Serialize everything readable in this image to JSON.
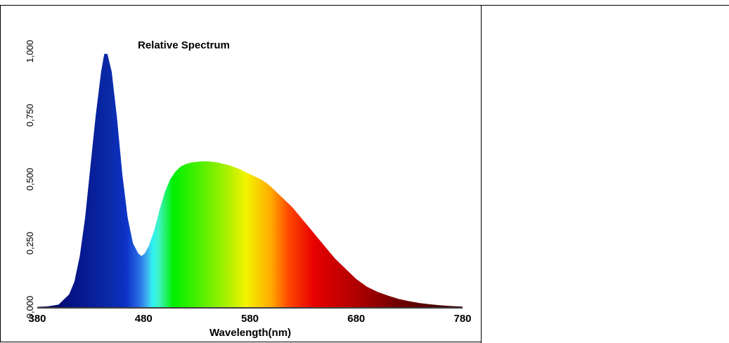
{
  "chart_data": {
    "type": "area",
    "title": "Relative Spectrum",
    "xlabel": "Wavelength(nm)",
    "ylabel": "",
    "xlim": [
      380,
      780
    ],
    "ylim": [
      0,
      1.0
    ],
    "x_ticks": [
      "380",
      "480",
      "580",
      "680",
      "780"
    ],
    "y_ticks": [
      "0,000",
      "0,250",
      "0,500",
      "0,750",
      "1,000"
    ],
    "grid": false,
    "legend": "none",
    "fill": "visible-spectrum-gradient",
    "series": [
      {
        "x": [
          380,
          390,
          400,
          410,
          415,
          420,
          425,
          430,
          435,
          440,
          443,
          446,
          450,
          455,
          460,
          465,
          470,
          475,
          478,
          481,
          485,
          490,
          495,
          500,
          505,
          510,
          515,
          520,
          525,
          530,
          535,
          540,
          545,
          550,
          555,
          560,
          565,
          570,
          575,
          580,
          585,
          590,
          595,
          600,
          605,
          610,
          615,
          620,
          625,
          630,
          635,
          640,
          645,
          650,
          655,
          660,
          665,
          670,
          675,
          680,
          690,
          700,
          710,
          720,
          730,
          740,
          750,
          760,
          770,
          780
        ],
        "values": [
          0.001,
          0.003,
          0.01,
          0.05,
          0.1,
          0.2,
          0.35,
          0.55,
          0.75,
          0.92,
          0.99,
          0.99,
          0.92,
          0.74,
          0.52,
          0.35,
          0.25,
          0.21,
          0.2,
          0.21,
          0.24,
          0.3,
          0.38,
          0.45,
          0.5,
          0.53,
          0.55,
          0.56,
          0.565,
          0.568,
          0.57,
          0.57,
          0.568,
          0.565,
          0.56,
          0.555,
          0.548,
          0.54,
          0.53,
          0.52,
          0.51,
          0.5,
          0.487,
          0.47,
          0.45,
          0.43,
          0.41,
          0.39,
          0.365,
          0.34,
          0.315,
          0.29,
          0.265,
          0.24,
          0.215,
          0.19,
          0.17,
          0.15,
          0.13,
          0.11,
          0.08,
          0.06,
          0.045,
          0.032,
          0.023,
          0.016,
          0.011,
          0.007,
          0.004,
          0.002
        ]
      }
    ]
  }
}
